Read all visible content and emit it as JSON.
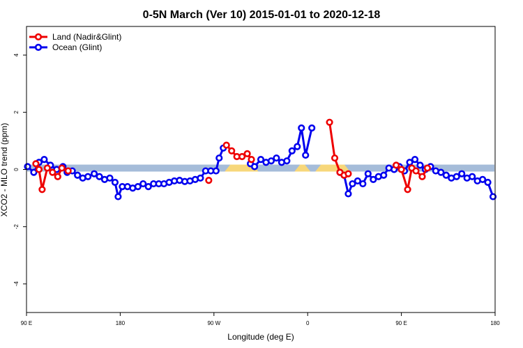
{
  "chart_data": {
    "type": "line",
    "title": "0-5N March (Ver 10)   2015-01-01 to 2020-12-18",
    "xlabel": "Longitude (deg E)",
    "ylabel": "XCO2 - MLO trend (ppm)",
    "xlim": [
      90,
      540
    ],
    "ylim": [
      -5,
      5
    ],
    "xticks": [
      {
        "value": 90,
        "label": "90 E"
      },
      {
        "value": 180,
        "label": "180"
      },
      {
        "value": 270,
        "label": "90 W"
      },
      {
        "value": 360,
        "label": "0"
      },
      {
        "value": 450,
        "label": "90 E"
      },
      {
        "value": 540,
        "label": "180"
      }
    ],
    "yticks": [
      {
        "value": -4,
        "label": "-4"
      },
      {
        "value": -2,
        "label": "-2"
      },
      {
        "value": 0,
        "label": "0"
      },
      {
        "value": 2,
        "label": "2"
      },
      {
        "value": 4,
        "label": "4"
      }
    ],
    "grid": false,
    "legend_position": "top-left",
    "band": {
      "y": 0.05,
      "ocean_color": "#a5bcd9",
      "land_color": "#f7d77a",
      "land_ranges": [
        [
          283,
          310
        ],
        [
          350,
          360
        ],
        [
          370,
          398
        ]
      ]
    },
    "series": [
      {
        "name": "Land (Nadir&Glint)",
        "color": "#ee0000",
        "segments": [
          [
            [
              99,
              0.2
            ],
            [
              102,
              0.0
            ],
            [
              105,
              -0.7
            ],
            [
              110,
              0.05
            ],
            [
              115,
              -0.1
            ],
            [
              120,
              -0.25
            ],
            [
              124,
              0.05
            ],
            [
              130,
              -0.05
            ]
          ],
          [
            [
              265,
              -0.38
            ]
          ],
          [
            [
              282,
              0.85
            ],
            [
              287,
              0.65
            ],
            [
              292,
              0.45
            ],
            [
              297,
              0.45
            ],
            [
              302,
              0.55
            ],
            [
              306,
              0.35
            ]
          ],
          [
            [
              381,
              1.65
            ],
            [
              386,
              0.4
            ],
            [
              391,
              -0.1
            ],
            [
              395,
              -0.2
            ],
            [
              399,
              -0.15
            ]
          ],
          [
            [
              445,
              0.15
            ],
            [
              450,
              0.0
            ],
            [
              456,
              -0.7
            ],
            [
              460,
              0.05
            ],
            [
              464,
              -0.05
            ],
            [
              470,
              -0.25
            ],
            [
              475,
              0.05
            ]
          ]
        ]
      },
      {
        "name": "Ocean (Glint)",
        "color": "#0000ee",
        "segments": [
          [
            [
              91,
              0.1
            ],
            [
              97,
              -0.1
            ],
            [
              102,
              0.25
            ],
            [
              107,
              0.35
            ],
            [
              113,
              0.15
            ],
            [
              119,
              0.0
            ],
            [
              125,
              0.1
            ],
            [
              129,
              -0.1
            ],
            [
              134,
              -0.05
            ],
            [
              139,
              -0.2
            ],
            [
              144,
              -0.3
            ],
            [
              149,
              -0.25
            ],
            [
              155,
              -0.15
            ],
            [
              160,
              -0.25
            ],
            [
              165,
              -0.35
            ],
            [
              170,
              -0.3
            ],
            [
              175,
              -0.45
            ],
            [
              178,
              -0.95
            ],
            [
              182,
              -0.6
            ],
            [
              187,
              -0.6
            ],
            [
              192,
              -0.65
            ],
            [
              197,
              -0.6
            ],
            [
              202,
              -0.5
            ],
            [
              207,
              -0.6
            ],
            [
              212,
              -0.5
            ],
            [
              217,
              -0.5
            ],
            [
              222,
              -0.5
            ],
            [
              227,
              -0.45
            ],
            [
              232,
              -0.4
            ],
            [
              237,
              -0.38
            ],
            [
              242,
              -0.42
            ],
            [
              247,
              -0.4
            ],
            [
              252,
              -0.35
            ],
            [
              257,
              -0.3
            ],
            [
              262,
              -0.05
            ],
            [
              267,
              -0.05
            ],
            [
              272,
              -0.05
            ],
            [
              275,
              0.4
            ],
            [
              279,
              0.75
            ]
          ],
          [
            [
              305,
              0.2
            ],
            [
              309,
              0.1
            ],
            [
              315,
              0.35
            ],
            [
              320,
              0.25
            ],
            [
              325,
              0.3
            ],
            [
              330,
              0.4
            ],
            [
              335,
              0.25
            ],
            [
              340,
              0.3
            ],
            [
              345,
              0.65
            ],
            [
              350,
              0.8
            ],
            [
              354,
              1.45
            ],
            [
              358,
              0.5
            ],
            [
              364,
              1.45
            ]
          ],
          [
            [
              391,
              -0.1
            ],
            [
              395,
              -0.2
            ],
            [
              399,
              -0.85
            ],
            [
              403,
              -0.5
            ],
            [
              408,
              -0.4
            ],
            [
              413,
              -0.5
            ],
            [
              418,
              -0.15
            ],
            [
              423,
              -0.35
            ],
            [
              428,
              -0.25
            ],
            [
              433,
              -0.2
            ],
            [
              438,
              0.05
            ],
            [
              443,
              0.0
            ],
            [
              448,
              0.1
            ],
            [
              453,
              -0.05
            ],
            [
              458,
              0.25
            ],
            [
              463,
              0.35
            ],
            [
              468,
              0.15
            ],
            [
              473,
              0.0
            ],
            [
              478,
              0.1
            ],
            [
              483,
              -0.05
            ],
            [
              488,
              -0.1
            ],
            [
              493,
              -0.2
            ],
            [
              498,
              -0.3
            ],
            [
              503,
              -0.25
            ],
            [
              508,
              -0.15
            ],
            [
              513,
              -0.3
            ],
            [
              518,
              -0.25
            ],
            [
              523,
              -0.4
            ],
            [
              528,
              -0.35
            ],
            [
              533,
              -0.45
            ],
            [
              538,
              -0.95
            ]
          ]
        ]
      }
    ]
  }
}
